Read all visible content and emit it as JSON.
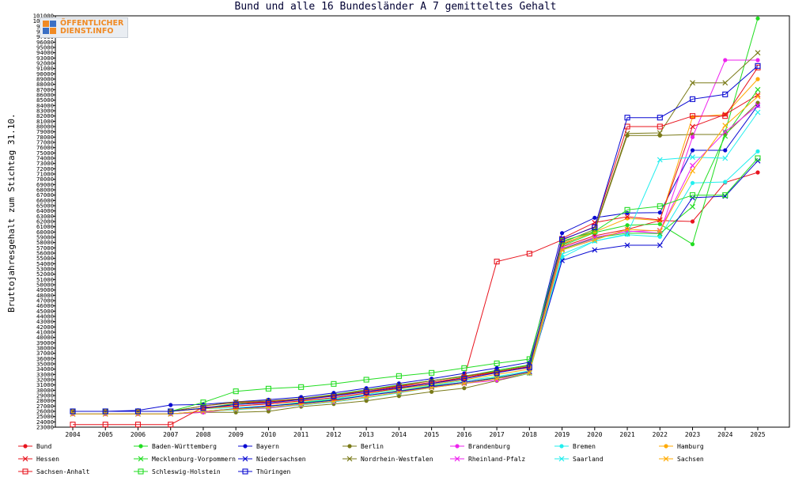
{
  "header": {
    "title": "Bund und alle 16 Bundesländer A 7 gemitteltes Gehalt",
    "logo_line1": "ÖFFENTLICHER",
    "logo_line2": "DIENST.INFO"
  },
  "chart_data": {
    "type": "line",
    "title": "Bund und alle 16 Bundesländer A 7 gemitteltes Gehalt",
    "xlabel": "",
    "ylabel": "Bruttojahresgehalt zum Stichtag 31.10.",
    "ylim": [
      23000,
      101000
    ],
    "ytick_step": 1000,
    "grid": false,
    "legend_position": "bottom",
    "categories": [
      2004,
      2005,
      2006,
      2007,
      2008,
      2009,
      2010,
      2011,
      2012,
      2013,
      2014,
      2015,
      2016,
      2017,
      2018,
      2019,
      2020,
      2021,
      2022,
      2023,
      2024,
      2025
    ],
    "series": [
      {
        "name": "Bund",
        "color": "#e8141e",
        "marker": "dot",
        "values": [
          26000,
          26000,
          26000,
          26000,
          26500,
          27300,
          27800,
          28300,
          29000,
          30000,
          30800,
          31800,
          32600,
          33500,
          34500,
          57200,
          59300,
          60500,
          62200,
          62000,
          69400,
          71300
        ]
      },
      {
        "name": "Baden-Württemberg",
        "color": "#22dd22",
        "marker": "dot",
        "values": [
          26000,
          26000,
          26000,
          26000,
          26600,
          27500,
          27900,
          28400,
          29200,
          30100,
          31000,
          31800,
          32600,
          33800,
          34800,
          57400,
          59900,
          61300,
          61500,
          57700,
          79000,
          100500
        ]
      },
      {
        "name": "Bayern",
        "color": "#0a0ad2",
        "marker": "dot",
        "values": [
          26000,
          26000,
          26200,
          27200,
          27300,
          27800,
          28200,
          28700,
          29500,
          30400,
          31300,
          32200,
          33200,
          34200,
          35300,
          59800,
          62700,
          63600,
          63700,
          75500,
          75500,
          84000
        ]
      },
      {
        "name": "Berlin",
        "color": "#7a7a18",
        "marker": "dot",
        "values": [
          25500,
          25500,
          25500,
          25500,
          25800,
          25800,
          26000,
          26900,
          27400,
          28000,
          28900,
          29700,
          30400,
          31800,
          33200,
          57600,
          60200,
          78300,
          78300,
          78500,
          78500,
          84500
        ]
      },
      {
        "name": "Brandenburg",
        "color": "#ee22ee",
        "marker": "dot",
        "values": [
          25500,
          25500,
          25500,
          25500,
          25800,
          26400,
          26600,
          27200,
          27800,
          28600,
          29600,
          30600,
          31300,
          31900,
          33400,
          56800,
          58700,
          60200,
          59800,
          78000,
          92600,
          92600
        ]
      },
      {
        "name": "Bremen",
        "color": "#22eeee",
        "marker": "dot",
        "values": [
          26000,
          26000,
          26000,
          26000,
          26500,
          26700,
          27000,
          27700,
          28400,
          29200,
          30200,
          31000,
          31800,
          32600,
          33700,
          55200,
          58300,
          59500,
          59100,
          69300,
          69500,
          75300
        ]
      },
      {
        "name": "Hamburg",
        "color": "#ffaa00",
        "marker": "dot",
        "values": [
          26000,
          26000,
          26000,
          26000,
          26500,
          27000,
          27400,
          27900,
          28600,
          29400,
          30300,
          31100,
          32000,
          33000,
          34000,
          57800,
          60000,
          62600,
          62200,
          81800,
          82300,
          89000
        ]
      },
      {
        "name": "Hessen",
        "color": "#e8141e",
        "marker": "x",
        "values": [
          26000,
          26000,
          26000,
          26000,
          27000,
          27700,
          27800,
          28300,
          29000,
          29800,
          30700,
          31500,
          32400,
          33400,
          34300,
          58800,
          61800,
          62900,
          62300,
          80000,
          82300,
          86000
        ]
      },
      {
        "name": "Mecklenburg-Vorpommern",
        "color": "#22dd22",
        "marker": "x",
        "values": [
          25500,
          25500,
          25500,
          25500,
          26000,
          26500,
          27000,
          27600,
          28200,
          29000,
          29900,
          30800,
          31500,
          32400,
          33500,
          56700,
          58900,
          59800,
          59700,
          64800,
          78200,
          87000
        ]
      },
      {
        "name": "Niedersachsen",
        "color": "#0a0ad2",
        "marker": "x",
        "values": [
          25500,
          25500,
          25500,
          25500,
          26000,
          26500,
          27000,
          27500,
          28100,
          29000,
          29800,
          30700,
          31500,
          32300,
          33500,
          54600,
          56600,
          57500,
          57500,
          66500,
          66800,
          73500
        ]
      },
      {
        "name": "Nordrhein-Westfalen",
        "color": "#7a7a18",
        "marker": "x",
        "values": [
          26000,
          26000,
          26000,
          26000,
          27000,
          27800,
          28000,
          28400,
          29100,
          30000,
          30900,
          31800,
          32700,
          33600,
          34700,
          58000,
          60500,
          78700,
          78800,
          88300,
          88300,
          94000
        ]
      },
      {
        "name": "Rheinland-Pfalz",
        "color": "#ee22ee",
        "marker": "x",
        "values": [
          25500,
          25500,
          25500,
          25500,
          26000,
          26400,
          26800,
          27300,
          27900,
          28700,
          29600,
          30500,
          31300,
          32200,
          33300,
          56900,
          59000,
          60100,
          60300,
          72600,
          79000,
          84000
        ]
      },
      {
        "name": "Saarland",
        "color": "#22eeee",
        "marker": "x",
        "values": [
          25500,
          25500,
          25500,
          25500,
          26000,
          26300,
          26700,
          27200,
          27800,
          28600,
          29500,
          30500,
          31300,
          32200,
          33200,
          55800,
          58300,
          59600,
          73700,
          74200,
          74000,
          82700
        ]
      },
      {
        "name": "Sachsen",
        "color": "#ffaa00",
        "marker": "x",
        "values": [
          25500,
          25500,
          25500,
          25500,
          26000,
          26400,
          26800,
          27300,
          27900,
          28700,
          29600,
          30500,
          31300,
          32200,
          33300,
          56600,
          58500,
          60500,
          60200,
          71600,
          80200,
          85700
        ]
      },
      {
        "name": "Sachsen-Anhalt",
        "color": "#e8141e",
        "marker": "square",
        "values": [
          23500,
          23500,
          23500,
          23500,
          26800,
          27000,
          27400,
          28000,
          28600,
          29500,
          30400,
          31300,
          32400,
          54400,
          55900,
          58500,
          61000,
          80000,
          80000,
          82000,
          82000,
          91200
        ]
      },
      {
        "name": "Schleswig-Holstein",
        "color": "#22dd22",
        "marker": "square",
        "values": [
          26000,
          26000,
          26000,
          26000,
          27700,
          29800,
          30300,
          30600,
          31200,
          32000,
          32700,
          33300,
          34200,
          35100,
          35900,
          58300,
          60100,
          64200,
          64900,
          67000,
          67000,
          74000
        ]
      },
      {
        "name": "Thüringen",
        "color": "#0a0ad2",
        "marker": "square",
        "values": [
          26000,
          26000,
          26000,
          26000,
          26600,
          27300,
          27600,
          28200,
          28900,
          29700,
          30500,
          31300,
          32200,
          33300,
          34400,
          58600,
          60900,
          81700,
          81700,
          85200,
          86100,
          91500
        ]
      }
    ]
  }
}
